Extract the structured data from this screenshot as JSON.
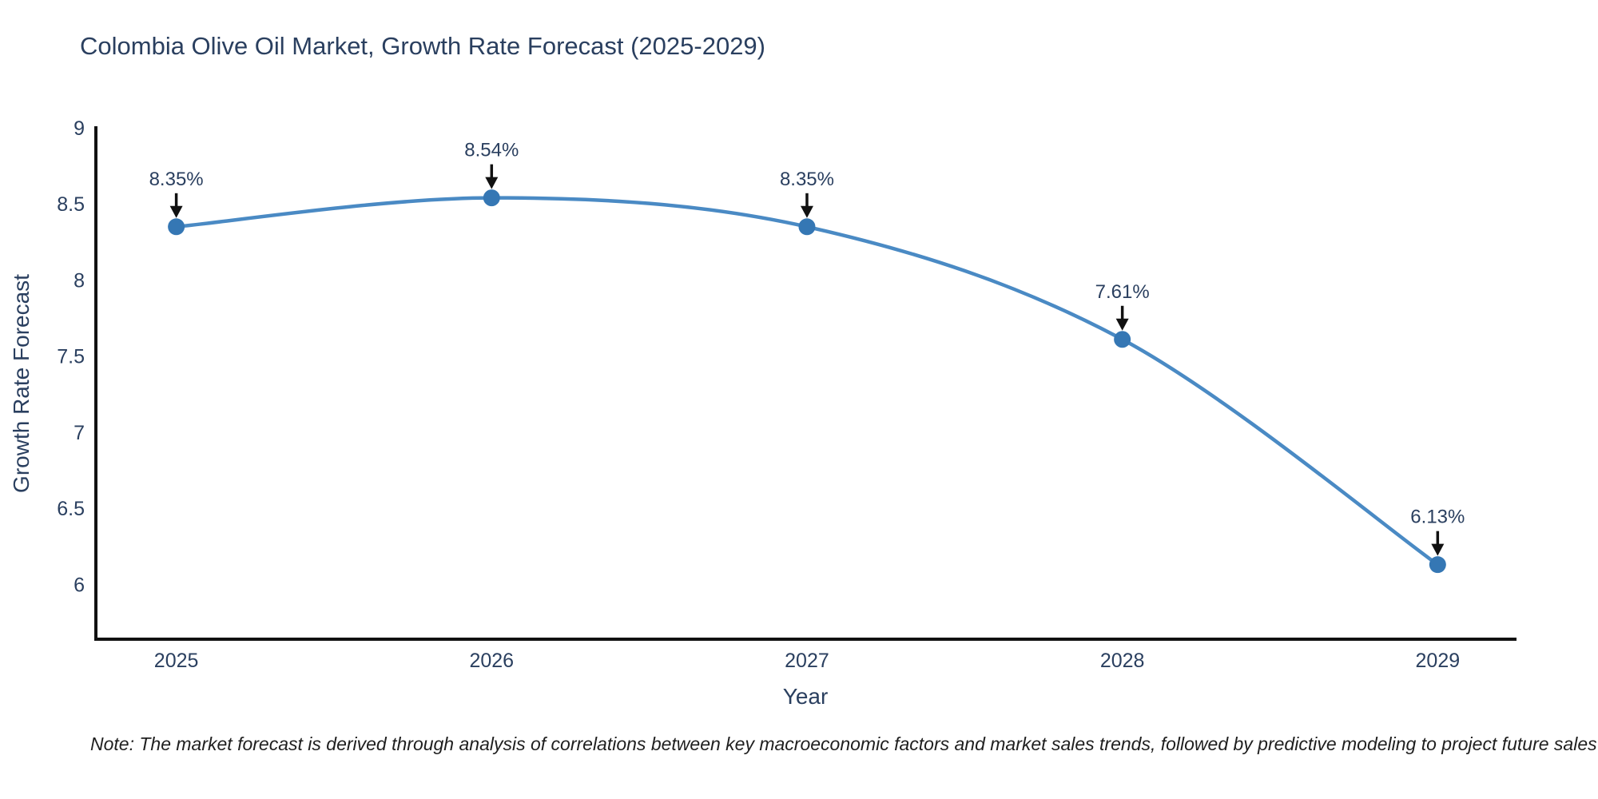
{
  "page": {
    "note": "Note: The market forecast is derived through analysis of correlations between key macroeconomic factors and market sales trends, followed by predictive modeling to project future sales"
  },
  "colors": {
    "text": "#2a3f5f",
    "line": "#4a8ac4",
    "marker": "#3577b4",
    "axis": "#111111",
    "arrow": "#111111"
  },
  "chart_data": {
    "type": "line",
    "title": "Colombia Olive Oil Market, Growth Rate Forecast (2025-2029)",
    "xlabel": "Year",
    "ylabel": "Growth Rate Forecast",
    "x": [
      2025,
      2026,
      2027,
      2028,
      2029
    ],
    "series": [
      {
        "name": "Growth Rate Forecast",
        "values": [
          8.35,
          8.54,
          8.35,
          7.61,
          6.13
        ]
      }
    ],
    "point_labels": [
      "8.35%",
      "8.54%",
      "8.35%",
      "7.61%",
      "6.13%"
    ],
    "xticks": [
      "2025",
      "2026",
      "2027",
      "2028",
      "2029"
    ],
    "yticks": [
      "6",
      "6.5",
      "7",
      "7.5",
      "8",
      "8.5",
      "9"
    ],
    "ytick_values": [
      6,
      6.5,
      7,
      7.5,
      8,
      8.5,
      9
    ],
    "xtick_values": [
      2025,
      2026,
      2027,
      2028,
      2029
    ],
    "xlim": [
      2024.74,
      2029.25
    ],
    "ylim": [
      5.64,
      9.0
    ],
    "line_shape": "spline",
    "grid": false,
    "legend": false
  }
}
